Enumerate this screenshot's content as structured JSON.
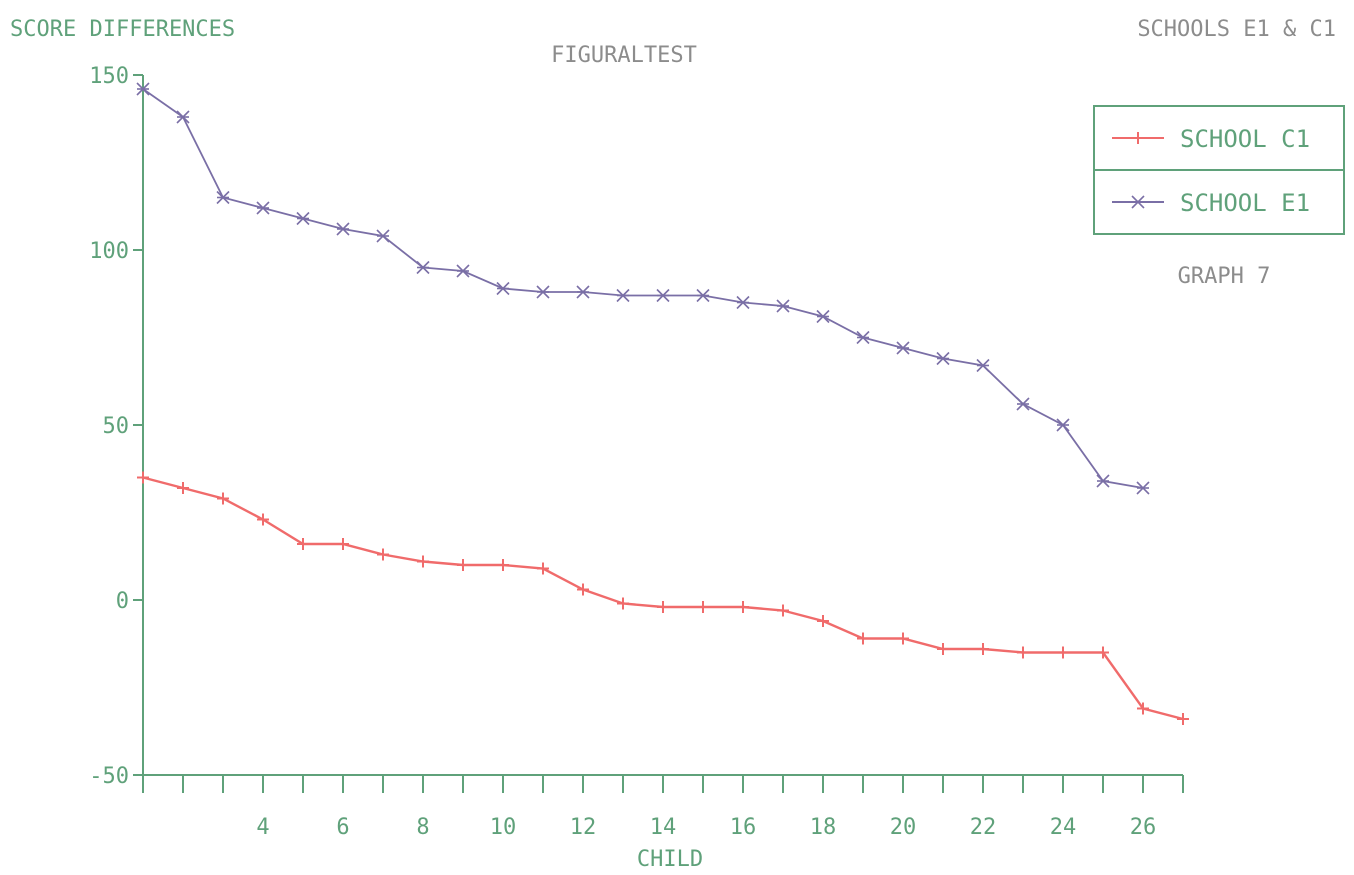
{
  "chart_data": {
    "type": "line",
    "title": "FIGURALTEST",
    "top_left_label": "SCORE DIFFERENCES",
    "top_right_label": "SCHOOLS E1 & C1",
    "graph_label": "GRAPH 7",
    "xlabel": "CHILD",
    "ylabel": "SCORE DIFFERENCES",
    "xlim": [
      1,
      27
    ],
    "ylim": [
      -50,
      150
    ],
    "yticks": [
      -50,
      0,
      50,
      100,
      150
    ],
    "xticks": [
      4,
      6,
      8,
      10,
      12,
      14,
      16,
      18,
      20,
      22,
      24,
      26
    ],
    "grid": false,
    "legend_position": "top-right",
    "colors": {
      "axis": "#5fa17a",
      "text": "#8c8c8c"
    },
    "series": [
      {
        "name": "SCHOOL C1",
        "color": "#f06b6b",
        "marker": "plus",
        "x": [
          1,
          2,
          3,
          4,
          5,
          6,
          7,
          8,
          9,
          10,
          11,
          12,
          13,
          14,
          15,
          16,
          17,
          18,
          19,
          20,
          21,
          22,
          23,
          24,
          25,
          26,
          27
        ],
        "values": [
          35,
          32,
          29,
          23,
          16,
          16,
          13,
          11,
          10,
          10,
          9,
          3,
          -1,
          -2,
          -2,
          -2,
          -3,
          -6,
          -11,
          -11,
          -14,
          -14,
          -15,
          -15,
          -15,
          -31,
          -34
        ]
      },
      {
        "name": "SCHOOL E1",
        "color": "#7a6fa6",
        "marker": "star",
        "x": [
          1,
          2,
          3,
          4,
          5,
          6,
          7,
          8,
          9,
          10,
          11,
          12,
          13,
          14,
          15,
          16,
          17,
          18,
          19,
          20,
          21,
          22,
          23,
          24,
          25,
          26
        ],
        "values": [
          146,
          138,
          115,
          112,
          109,
          106,
          104,
          95,
          94,
          89,
          88,
          88,
          87,
          87,
          87,
          85,
          84,
          81,
          75,
          72,
          69,
          67,
          56,
          50,
          34,
          32
        ]
      }
    ]
  }
}
